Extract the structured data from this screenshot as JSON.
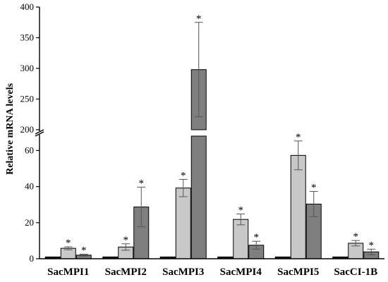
{
  "chart_data": {
    "type": "bar",
    "ylabel": "Relative mRNA levels",
    "categories": [
      "SacMPI1",
      "SacMPI2",
      "SacMPI3",
      "SacMPI4",
      "SacMPI5",
      "SacCI-1B"
    ],
    "y_axis_break": {
      "lower_range": [
        0,
        68
      ],
      "upper_range": [
        200,
        400
      ]
    },
    "lower_ticks": [
      "0",
      "20",
      "40",
      "60"
    ],
    "upper_ticks": [
      "200",
      "250",
      "300",
      "350",
      "400"
    ],
    "series": [
      {
        "color": "#1a1a1a",
        "values": [
          1,
          1,
          1,
          1,
          1,
          1
        ],
        "errors": [
          0,
          0,
          0,
          0,
          0,
          0
        ],
        "stars": [
          false,
          false,
          false,
          false,
          false,
          false
        ]
      },
      {
        "color": "#c8c8c8",
        "values": [
          5.8,
          6.5,
          39.2,
          21.8,
          57.3,
          8.6
        ],
        "errors": [
          0.8,
          1.8,
          4.8,
          3.0,
          8.0,
          1.5
        ],
        "stars": [
          true,
          true,
          true,
          true,
          true,
          true
        ]
      },
      {
        "color": "#7f7f7f",
        "values": [
          2.0,
          28.7,
          298,
          7.5,
          30.3,
          3.8
        ],
        "errors": [
          0.5,
          11.0,
          77,
          2.2,
          7.0,
          1.5
        ],
        "stars": [
          true,
          true,
          true,
          true,
          true,
          true
        ]
      }
    ],
    "star_symbol": "*",
    "grid": false,
    "legend": "none"
  }
}
